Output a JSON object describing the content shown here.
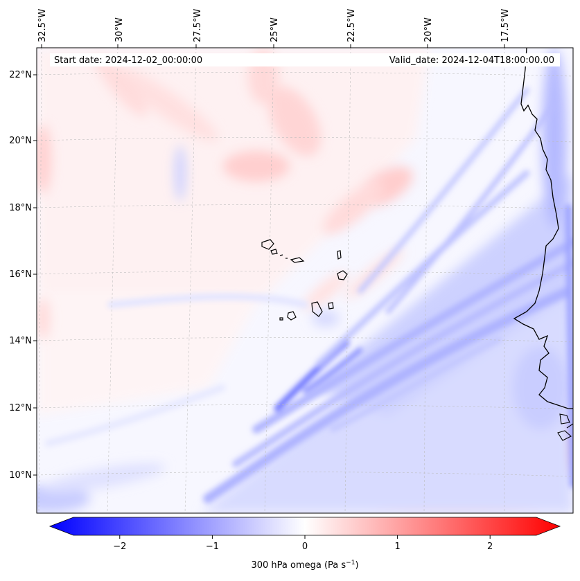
{
  "map": {
    "start_date_label": "Start date: 2024-12-02_00:00:00",
    "valid_date_label": "Valid_date: 2024-12-04T18:00:00.00",
    "longitude_ticks": [
      "32.5°W",
      "30°W",
      "27.5°W",
      "25°W",
      "22.5°W",
      "20°W",
      "17.5°W"
    ],
    "latitude_ticks": [
      "22°N",
      "20°N",
      "18°N",
      "16°N",
      "14°N",
      "12°N",
      "10°N"
    ],
    "variable": "300 hPa omega",
    "units": "Pa s",
    "units_exponent": "−1",
    "colormap": "bwr",
    "negative_color": "#0000ff",
    "zero_color": "#ffffff",
    "positive_color": "#ff0000",
    "coastline_color": "#000000"
  },
  "colorbar": {
    "ticks": [
      "−2",
      "−1",
      "0",
      "1",
      "2"
    ],
    "tick_values": [
      -2,
      -1,
      0,
      1,
      2
    ],
    "range": [
      -2.5,
      2.5
    ],
    "label_prefix": "300 hPa omega (Pa s",
    "label_suffix": ")",
    "label_exponent": "−1"
  }
}
